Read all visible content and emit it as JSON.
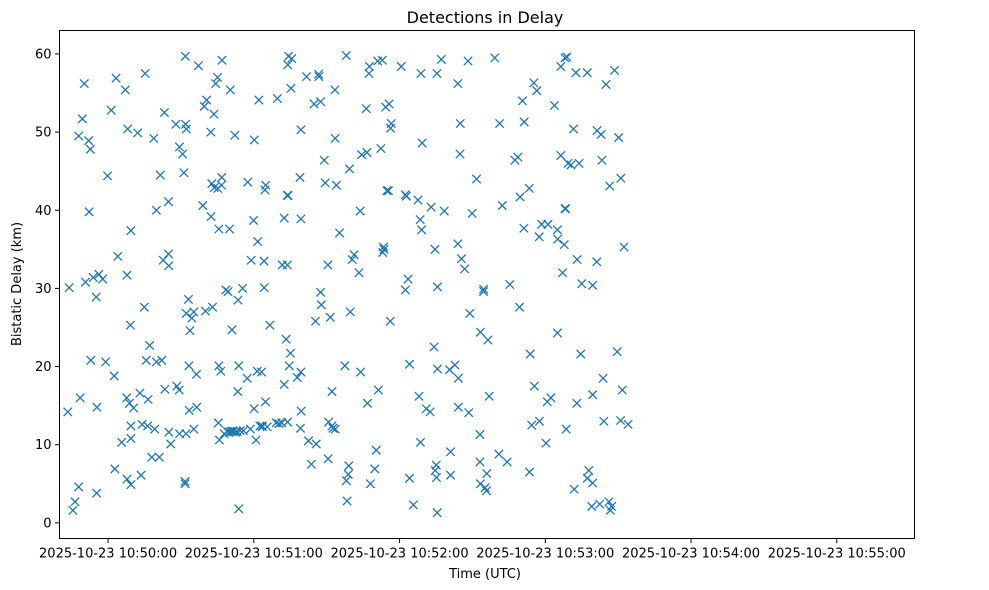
{
  "chart_data": {
    "type": "scatter",
    "title": "Detections in Delay",
    "xlabel": "Time (UTC)",
    "ylabel": "Bistatic Delay (km)",
    "marker": "x",
    "color": "#1f77b4",
    "grid": false,
    "legend": "none",
    "xlim_seconds": [
      -20,
      332
    ],
    "ylim": [
      -2,
      63
    ],
    "x_ticks": [
      {
        "t": 0,
        "label": "2025-10-23 10:50:00"
      },
      {
        "t": 60,
        "label": "2025-10-23 10:51:00"
      },
      {
        "t": 120,
        "label": "2025-10-23 10:52:00"
      },
      {
        "t": 180,
        "label": "2025-10-23 10:53:00"
      },
      {
        "t": 240,
        "label": "2025-10-23 10:54:00"
      },
      {
        "t": 300,
        "label": "2025-10-23 10:55:00"
      }
    ],
    "y_ticks": [
      0,
      10,
      20,
      30,
      40,
      50,
      60
    ],
    "points": [
      [
        -16.6,
        14.2
      ],
      [
        -16,
        30.1
      ],
      [
        -14.5,
        1.6
      ],
      [
        -13.6,
        2.7
      ],
      [
        -12.1,
        49.5
      ],
      [
        -12.1,
        4.6
      ],
      [
        -11.5,
        16
      ],
      [
        -10.6,
        51.7
      ],
      [
        -9.8,
        56.2
      ],
      [
        -9.3,
        30.8
      ],
      [
        -8,
        48.9
      ],
      [
        -7.8,
        39.8
      ],
      [
        -7.3,
        47.8
      ],
      [
        -7.1,
        20.8
      ],
      [
        -6.1,
        31.4
      ],
      [
        -4.9,
        28.9
      ],
      [
        -4.7,
        3.8
      ],
      [
        -4.6,
        14.8
      ],
      [
        -3.8,
        31.8
      ],
      [
        -2.2,
        31.2
      ],
      [
        -1,
        20.6
      ],
      [
        -0.2,
        44.4
      ],
      [
        1.3,
        52.8
      ],
      [
        2.5,
        18.8
      ],
      [
        2.8,
        6.9
      ],
      [
        3.3,
        56.9
      ],
      [
        4,
        34.1
      ],
      [
        5.6,
        10.3
      ],
      [
        7.1,
        55.4
      ],
      [
        7.7,
        16
      ],
      [
        7.8,
        5.6
      ],
      [
        7.8,
        31.7
      ],
      [
        8.1,
        50.4
      ],
      [
        8.8,
        15.3
      ],
      [
        9.2,
        25.3
      ],
      [
        9.4,
        37.4
      ],
      [
        9.4,
        10.8
      ],
      [
        9.4,
        12.4
      ],
      [
        9.4,
        4.9
      ],
      [
        10.5,
        14.7
      ],
      [
        12.2,
        49.9
      ],
      [
        13.1,
        16.6
      ],
      [
        13.6,
        6.1
      ],
      [
        14,
        12.6
      ],
      [
        14.9,
        27.6
      ],
      [
        15.3,
        57.5
      ],
      [
        15.7,
        20.8
      ],
      [
        16.3,
        12.4
      ],
      [
        16.5,
        15.8
      ],
      [
        17.1,
        22.7
      ],
      [
        18,
        8.4
      ],
      [
        18.8,
        49.2
      ],
      [
        19.2,
        12
      ],
      [
        19.9,
        20.6
      ],
      [
        19.9,
        40
      ],
      [
        21.1,
        8.4
      ],
      [
        21.5,
        44.5
      ],
      [
        22.1,
        20.8
      ],
      [
        22.7,
        33.6
      ],
      [
        23.2,
        52.5
      ],
      [
        23.4,
        17.1
      ],
      [
        24.9,
        41.1
      ],
      [
        24.9,
        34.4
      ],
      [
        25,
        11.6
      ],
      [
        25,
        32.9
      ],
      [
        25.8,
        10.1
      ],
      [
        27.9,
        51
      ],
      [
        28.3,
        17.5
      ],
      [
        29.3,
        17
      ],
      [
        29.4,
        48.1
      ],
      [
        29.4,
        11.4
      ],
      [
        30.7,
        47.2
      ],
      [
        31.2,
        44.8
      ],
      [
        31.7,
        5.3
      ],
      [
        31.7,
        5
      ],
      [
        31.8,
        59.7
      ],
      [
        31.9,
        51
      ],
      [
        32.1,
        11.4
      ],
      [
        32.2,
        50.4
      ],
      [
        32.2,
        26.8
      ],
      [
        33.1,
        28.6
      ],
      [
        33.3,
        20.1
      ],
      [
        33.4,
        14.4
      ],
      [
        33.7,
        24.6
      ],
      [
        34.5,
        26.2
      ],
      [
        35.3,
        27
      ],
      [
        35.3,
        12
      ],
      [
        36.4,
        19
      ],
      [
        36.5,
        14.8
      ],
      [
        37.2,
        58.5
      ],
      [
        39,
        40.6
      ],
      [
        39.6,
        53.3
      ],
      [
        40.1,
        27.1
      ],
      [
        40.6,
        54.1
      ],
      [
        42.3,
        50
      ],
      [
        42.4,
        39.2
      ],
      [
        42.7,
        43.4
      ],
      [
        43,
        27.6
      ],
      [
        43.6,
        52.3
      ],
      [
        43.7,
        42.9
      ],
      [
        44.3,
        56.2
      ],
      [
        45.1,
        57
      ],
      [
        45.2,
        42.8
      ],
      [
        45.4,
        12.8
      ],
      [
        45.6,
        37.6
      ],
      [
        45.6,
        20.1
      ],
      [
        45.8,
        10.6
      ],
      [
        46.4,
        19.4
      ],
      [
        46.7,
        43.2
      ],
      [
        46.8,
        44.2
      ],
      [
        46.9,
        59.2
      ],
      [
        47.8,
        11.4
      ],
      [
        48.5,
        29.8
      ],
      [
        49.1,
        11.7
      ],
      [
        49.4,
        29.6
      ],
      [
        49.8,
        11.6
      ],
      [
        50,
        37.6
      ],
      [
        50.3,
        55.4
      ],
      [
        50.5,
        11.7
      ],
      [
        51.2,
        11.7
      ],
      [
        51,
        24.7
      ],
      [
        51.5,
        11.7
      ],
      [
        52.2,
        49.6
      ],
      [
        52.5,
        11.6
      ],
      [
        53.1,
        11.7
      ],
      [
        53.4,
        16.8
      ],
      [
        53.5,
        28.5
      ],
      [
        53.8,
        1.8
      ],
      [
        53.8,
        20.1
      ],
      [
        54.4,
        11.8
      ],
      [
        55.4,
        30
      ],
      [
        55.7,
        11.8
      ],
      [
        57.3,
        18.5
      ],
      [
        57.5,
        43.6
      ],
      [
        58.6,
        12
      ],
      [
        58.9,
        33.6
      ],
      [
        59.9,
        38.7
      ],
      [
        60.1,
        14.6
      ],
      [
        60.2,
        49
      ],
      [
        60.9,
        10.6
      ],
      [
        61.4,
        19.4
      ],
      [
        61.6,
        36
      ],
      [
        62.1,
        54.1
      ],
      [
        62.5,
        12.4
      ],
      [
        63.2,
        19.3
      ],
      [
        63.4,
        12.4
      ],
      [
        63.5,
        12.3
      ],
      [
        64.2,
        33.5
      ],
      [
        64.3,
        30.1
      ],
      [
        64.6,
        42.6
      ],
      [
        64.8,
        15.5
      ],
      [
        64.9,
        43.2
      ],
      [
        65.5,
        12.3
      ],
      [
        66.6,
        25.3
      ],
      [
        69.2,
        12.8
      ],
      [
        69.7,
        54.3
      ],
      [
        70.3,
        12.7
      ],
      [
        71.5,
        12.8
      ],
      [
        71.7,
        33
      ],
      [
        72.5,
        17.7
      ],
      [
        72.5,
        39
      ],
      [
        73.3,
        23.5
      ],
      [
        73.8,
        41.9
      ],
      [
        73.8,
        33
      ],
      [
        73.9,
        12.9
      ],
      [
        74.1,
        41.9
      ],
      [
        74,
        58.6
      ],
      [
        74.3,
        59.7
      ],
      [
        74.6,
        20.1
      ],
      [
        75.1,
        21.7
      ],
      [
        75.3,
        55.6
      ],
      [
        75.6,
        59.4
      ],
      [
        77.9,
        18.6
      ],
      [
        79,
        44.2
      ],
      [
        79.2,
        12.1
      ],
      [
        79.4,
        19.3
      ],
      [
        79.4,
        38.9
      ],
      [
        79.4,
        50.3
      ],
      [
        79.5,
        14.3
      ],
      [
        81.7,
        57.1
      ],
      [
        82.5,
        10.5
      ],
      [
        83.7,
        7.5
      ],
      [
        84.8,
        53.6
      ],
      [
        85.4,
        25.8
      ],
      [
        85.7,
        10.1
      ],
      [
        86.7,
        57.4
      ],
      [
        86.8,
        57.1
      ],
      [
        87.5,
        29.5
      ],
      [
        87.5,
        53.9
      ],
      [
        87.8,
        27.9
      ],
      [
        89,
        46.4
      ],
      [
        89.4,
        43.5
      ],
      [
        90.5,
        33
      ],
      [
        90.6,
        8.2
      ],
      [
        90.8,
        12.9
      ],
      [
        91.5,
        26.3
      ],
      [
        92.2,
        16.8
      ],
      [
        92.2,
        12.4
      ],
      [
        92.6,
        12.1
      ],
      [
        93.4,
        55.4
      ],
      [
        93.5,
        49.2
      ],
      [
        93.5,
        12
      ],
      [
        94,
        43.2
      ],
      [
        95.3,
        37.1
      ],
      [
        97.5,
        20.1
      ],
      [
        98.1,
        5.4
      ],
      [
        98.1,
        59.8
      ],
      [
        98.4,
        2.8
      ],
      [
        98.9,
        6.2
      ],
      [
        99.1,
        7.3
      ],
      [
        99.4,
        45.3
      ],
      [
        99.7,
        27
      ],
      [
        100.5,
        33.7
      ],
      [
        101.3,
        34.3
      ],
      [
        103.3,
        32
      ],
      [
        103.8,
        39.9
      ],
      [
        104,
        19.3
      ],
      [
        104.4,
        47.1
      ],
      [
        106.3,
        53
      ],
      [
        106.6,
        47.4
      ],
      [
        106.8,
        15.3
      ],
      [
        107.4,
        57.5
      ],
      [
        107.6,
        58.4
      ],
      [
        108,
        5
      ],
      [
        109.8,
        6.9
      ],
      [
        110.4,
        9.3
      ],
      [
        111,
        59.1
      ],
      [
        111.3,
        17
      ],
      [
        112.3,
        47.9
      ],
      [
        112.9,
        59.2
      ],
      [
        113.1,
        34.6
      ],
      [
        113.4,
        35.3
      ],
      [
        113.6,
        35
      ],
      [
        114.3,
        53.2
      ],
      [
        114.8,
        42.5
      ],
      [
        115.4,
        42.5
      ],
      [
        115.7,
        53.6
      ],
      [
        116.2,
        25.8
      ],
      [
        116.3,
        50.5
      ],
      [
        116.6,
        51.1
      ],
      [
        120.7,
        58.4
      ],
      [
        122.4,
        42
      ],
      [
        122.4,
        29.8
      ],
      [
        122.8,
        41.8
      ],
      [
        123.5,
        31.2
      ],
      [
        124.1,
        5.7
      ],
      [
        124.1,
        20.3
      ],
      [
        125.7,
        2.3
      ],
      [
        127.6,
        41.3
      ],
      [
        128,
        16.2
      ],
      [
        128.5,
        38.8
      ],
      [
        128.6,
        10.3
      ],
      [
        128.8,
        57.5
      ],
      [
        129.1,
        37.5
      ],
      [
        129.3,
        48.6
      ],
      [
        131,
        14.6
      ],
      [
        132.6,
        14.2
      ],
      [
        133,
        40.4
      ],
      [
        134.2,
        22.5
      ],
      [
        134.6,
        35
      ],
      [
        134.7,
        6.7
      ],
      [
        135.1,
        7.4
      ],
      [
        135.2,
        5.8
      ],
      [
        135.4,
        57.5
      ],
      [
        135.5,
        1.3
      ],
      [
        135.6,
        19.7
      ],
      [
        135.6,
        30.2
      ],
      [
        137.2,
        59.3
      ],
      [
        138.4,
        39.9
      ],
      [
        140.6,
        19.6
      ],
      [
        141,
        6.1
      ],
      [
        141,
        9.1
      ],
      [
        142.8,
        20.2
      ],
      [
        144,
        35.7
      ],
      [
        144,
        56.2
      ],
      [
        144.2,
        18.5
      ],
      [
        144.2,
        14.8
      ],
      [
        144.9,
        47.2
      ],
      [
        145,
        51.1
      ],
      [
        145.5,
        33.8
      ],
      [
        146.8,
        32.5
      ],
      [
        148.2,
        59.1
      ],
      [
        148.5,
        14.1
      ],
      [
        148.9,
        26.8
      ],
      [
        149.9,
        39.6
      ],
      [
        151.7,
        44
      ],
      [
        153.1,
        11.3
      ],
      [
        153.1,
        7.8
      ],
      [
        153.3,
        24.4
      ],
      [
        153.3,
        5
      ],
      [
        154.6,
        29.6
      ],
      [
        154.6,
        29.9
      ],
      [
        155.2,
        4.5
      ],
      [
        155.8,
        4.1
      ],
      [
        155.9,
        6.3
      ],
      [
        156.4,
        23.4
      ],
      [
        156.9,
        16.2
      ],
      [
        159.2,
        59.5
      ],
      [
        160.9,
        8.8
      ],
      [
        161.2,
        51.1
      ],
      [
        162.3,
        40.6
      ],
      [
        164.3,
        7.8
      ],
      [
        165.4,
        30.5
      ],
      [
        167.5,
        46.4
      ],
      [
        168.7,
        46.8
      ],
      [
        169.4,
        27.6
      ],
      [
        169.6,
        41.7
      ],
      [
        170.6,
        54
      ],
      [
        171.2,
        37.7
      ],
      [
        171.3,
        51.3
      ],
      [
        173.4,
        42.8
      ],
      [
        173.5,
        6.5
      ],
      [
        173.8,
        21.6
      ],
      [
        174.4,
        12.5
      ],
      [
        175.3,
        56.3
      ],
      [
        175.5,
        17.5
      ],
      [
        176.5,
        55.3
      ],
      [
        177.6,
        13
      ],
      [
        177.5,
        36.6
      ],
      [
        178.5,
        38.2
      ],
      [
        180.3,
        10.2
      ],
      [
        180.8,
        15.5
      ],
      [
        181.1,
        38.2
      ],
      [
        182.3,
        16
      ],
      [
        183.8,
        53.4
      ],
      [
        185.1,
        36.3
      ],
      [
        185,
        24.3
      ],
      [
        185,
        37.5
      ],
      [
        186.4,
        47
      ],
      [
        186.4,
        58.4
      ],
      [
        187.1,
        32
      ],
      [
        187.8,
        35.6
      ],
      [
        188.1,
        40.2
      ],
      [
        188.1,
        59.5
      ],
      [
        188.4,
        40.2
      ],
      [
        188.6,
        12
      ],
      [
        188.9,
        59.6
      ],
      [
        189.4,
        46
      ],
      [
        190.6,
        45.8
      ],
      [
        191.6,
        50.4
      ],
      [
        191.9,
        4.3
      ],
      [
        192.6,
        57.6
      ],
      [
        193,
        15.3
      ],
      [
        193.1,
        33.7
      ],
      [
        193.9,
        46
      ],
      [
        194.6,
        21.6
      ],
      [
        195,
        30.6
      ],
      [
        197.3,
        57.6
      ],
      [
        197.3,
        5.7
      ],
      [
        197.9,
        6.7
      ],
      [
        199.1,
        2.1
      ],
      [
        199.5,
        30.4
      ],
      [
        199.5,
        5.1
      ],
      [
        199.5,
        16.4
      ],
      [
        201.2,
        33.4
      ],
      [
        201.3,
        50.2
      ],
      [
        202.4,
        2.4
      ],
      [
        203,
        49.7
      ],
      [
        203.3,
        46.4
      ],
      [
        203.8,
        18.5
      ],
      [
        204.1,
        13
      ],
      [
        205,
        56.1
      ],
      [
        206.2,
        2.7
      ],
      [
        206.5,
        43.1
      ],
      [
        206.8,
        1.6
      ],
      [
        207.3,
        2.1
      ],
      [
        208.5,
        57.9
      ],
      [
        209.6,
        21.9
      ],
      [
        210.2,
        49.3
      ],
      [
        211,
        13.1
      ],
      [
        211.1,
        44.1
      ],
      [
        211.7,
        17
      ],
      [
        212.4,
        35.3
      ],
      [
        214.1,
        12.6
      ]
    ]
  }
}
